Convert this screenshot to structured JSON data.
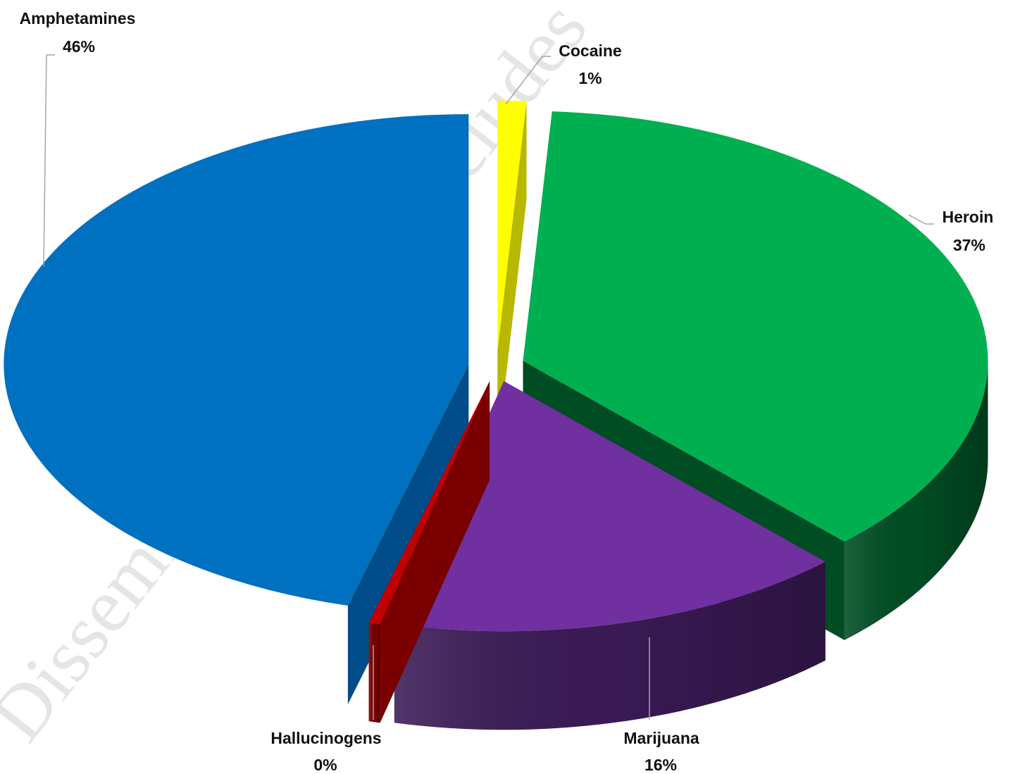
{
  "chart_data": {
    "type": "pie",
    "variant": "3d-exploded",
    "title": "",
    "slices": [
      {
        "name": "Amphetamines",
        "value": 46,
        "label": "46%",
        "color": "#0070c0",
        "side_color": "#004c8a"
      },
      {
        "name": "Cocaine",
        "value": 1,
        "label": "1%",
        "color": "#ffff00",
        "side_color": "#b8b800"
      },
      {
        "name": "Heroin",
        "value": 37,
        "label": "37%",
        "color": "#00b050",
        "side_color": "#004d24"
      },
      {
        "name": "Marijuana",
        "value": 16,
        "label": "16%",
        "color": "#7030a0",
        "side_color": "#3a1a55"
      },
      {
        "name": "Hallucinogens",
        "value": 0.4,
        "label": "0%",
        "color": "#c00000",
        "side_color": "#7a0000"
      }
    ],
    "data_labels": "category name and percentage",
    "legend": "none"
  },
  "watermark": "Disseminate Deliver includes"
}
